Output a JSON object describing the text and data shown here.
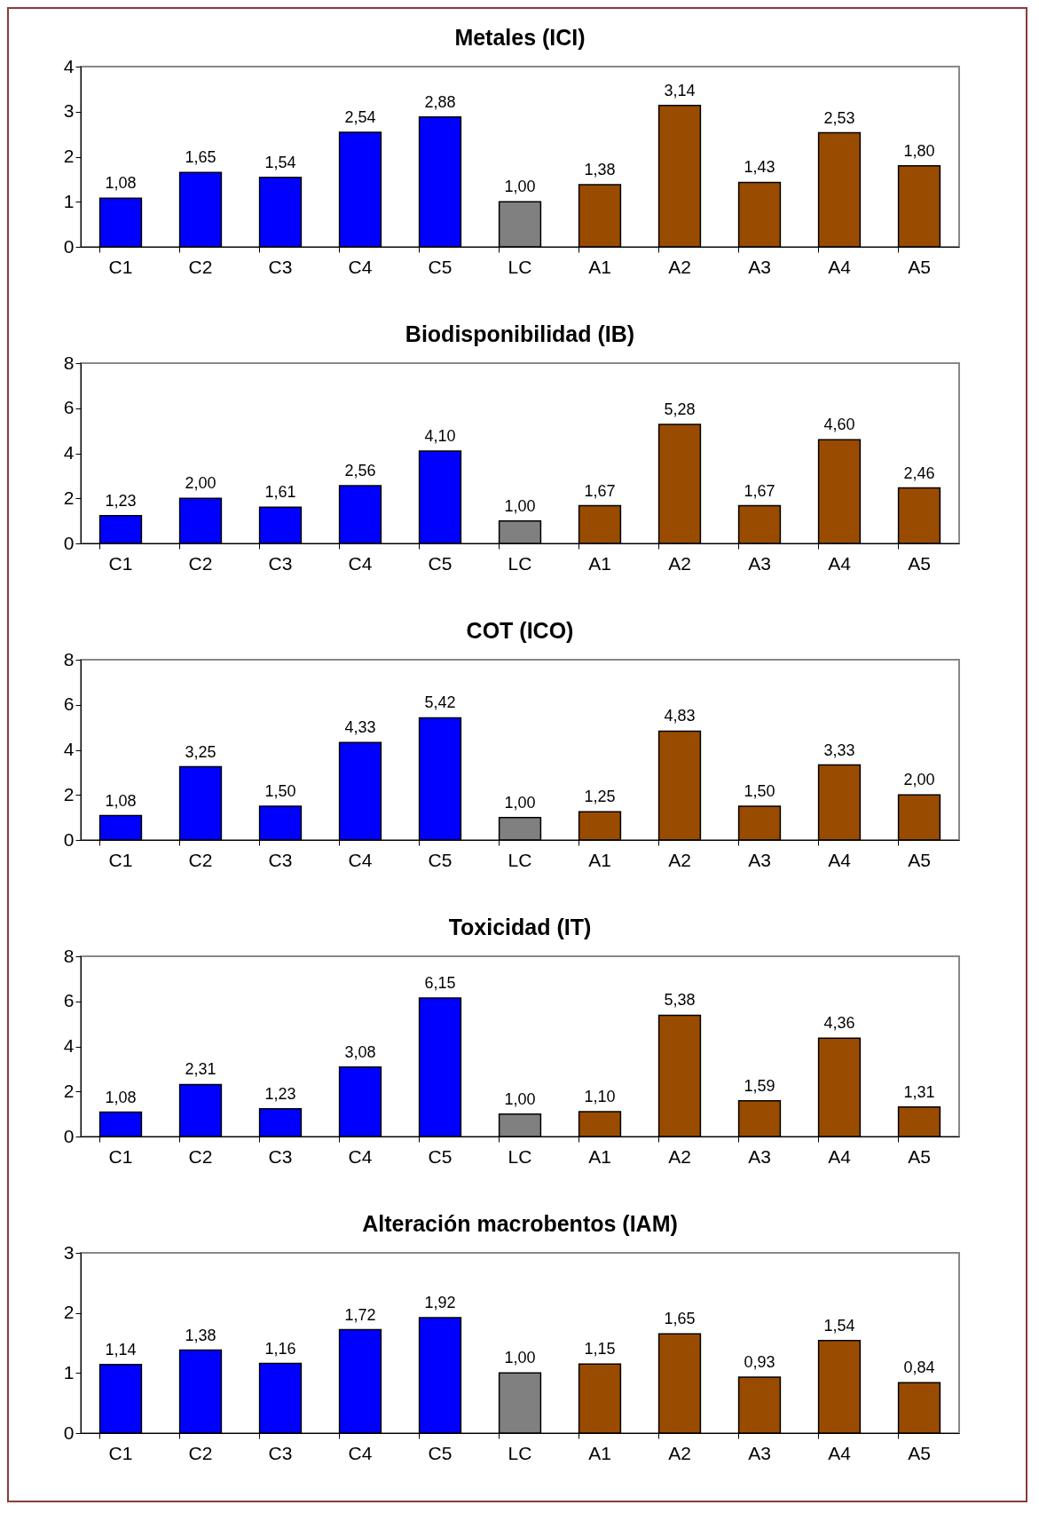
{
  "chart_data": [
    {
      "type": "bar",
      "title": "Metales (ICI)",
      "categories": [
        "C1",
        "C2",
        "C3",
        "C4",
        "C5",
        "LC",
        "A1",
        "A2",
        "A3",
        "A4",
        "A5"
      ],
      "values": [
        1.08,
        1.65,
        1.54,
        2.54,
        2.88,
        1.0,
        1.38,
        3.14,
        1.43,
        2.53,
        1.8
      ],
      "value_labels": [
        "1,08",
        "1,65",
        "1,54",
        "2,54",
        "2,88",
        "1,00",
        "1,38",
        "3,14",
        "1,43",
        "2,53",
        "1,80"
      ],
      "colors": [
        "#0000ff",
        "#0000ff",
        "#0000ff",
        "#0000ff",
        "#0000ff",
        "#808080",
        "#994c00",
        "#994c00",
        "#994c00",
        "#994c00",
        "#994c00"
      ],
      "ylim": [
        0,
        4
      ],
      "yticks": [
        0,
        1,
        2,
        3,
        4
      ]
    },
    {
      "type": "bar",
      "title": "Biodisponibilidad (IB)",
      "categories": [
        "C1",
        "C2",
        "C3",
        "C4",
        "C5",
        "LC",
        "A1",
        "A2",
        "A3",
        "A4",
        "A5"
      ],
      "values": [
        1.23,
        2.0,
        1.61,
        2.56,
        4.1,
        1.0,
        1.67,
        5.28,
        1.67,
        4.6,
        2.46
      ],
      "value_labels": [
        "1,23",
        "2,00",
        "1,61",
        "2,56",
        "4,10",
        "1,00",
        "1,67",
        "5,28",
        "1,67",
        "4,60",
        "2,46"
      ],
      "colors": [
        "#0000ff",
        "#0000ff",
        "#0000ff",
        "#0000ff",
        "#0000ff",
        "#808080",
        "#994c00",
        "#994c00",
        "#994c00",
        "#994c00",
        "#994c00"
      ],
      "ylim": [
        0,
        8
      ],
      "yticks": [
        0,
        2,
        4,
        6,
        8
      ]
    },
    {
      "type": "bar",
      "title": "COT (ICO)",
      "categories": [
        "C1",
        "C2",
        "C3",
        "C4",
        "C5",
        "LC",
        "A1",
        "A2",
        "A3",
        "A4",
        "A5"
      ],
      "values": [
        1.08,
        3.25,
        1.5,
        4.33,
        5.42,
        1.0,
        1.25,
        4.83,
        1.5,
        3.33,
        2.0
      ],
      "value_labels": [
        "1,08",
        "3,25",
        "1,50",
        "4,33",
        "5,42",
        "1,00",
        "1,25",
        "4,83",
        "1,50",
        "3,33",
        "2,00"
      ],
      "colors": [
        "#0000ff",
        "#0000ff",
        "#0000ff",
        "#0000ff",
        "#0000ff",
        "#808080",
        "#994c00",
        "#994c00",
        "#994c00",
        "#994c00",
        "#994c00"
      ],
      "ylim": [
        0,
        8
      ],
      "yticks": [
        0,
        2,
        4,
        6,
        8
      ]
    },
    {
      "type": "bar",
      "title": "Toxicidad (IT)",
      "categories": [
        "C1",
        "C2",
        "C3",
        "C4",
        "C5",
        "LC",
        "A1",
        "A2",
        "A3",
        "A4",
        "A5"
      ],
      "values": [
        1.08,
        2.31,
        1.23,
        3.08,
        6.15,
        1.0,
        1.1,
        5.38,
        1.59,
        4.36,
        1.31
      ],
      "value_labels": [
        "1,08",
        "2,31",
        "1,23",
        "3,08",
        "6,15",
        "1,00",
        "1,10",
        "5,38",
        "1,59",
        "4,36",
        "1,31"
      ],
      "colors": [
        "#0000ff",
        "#0000ff",
        "#0000ff",
        "#0000ff",
        "#0000ff",
        "#808080",
        "#994c00",
        "#994c00",
        "#994c00",
        "#994c00",
        "#994c00"
      ],
      "ylim": [
        0,
        8
      ],
      "yticks": [
        0,
        2,
        4,
        6,
        8
      ]
    },
    {
      "type": "bar",
      "title": "Alteración macrobentos (IAM)",
      "categories": [
        "C1",
        "C2",
        "C3",
        "C4",
        "C5",
        "LC",
        "A1",
        "A2",
        "A3",
        "A4",
        "A5"
      ],
      "values": [
        1.14,
        1.38,
        1.16,
        1.72,
        1.92,
        1.0,
        1.15,
        1.65,
        0.93,
        1.54,
        0.84
      ],
      "value_labels": [
        "1,14",
        "1,38",
        "1,16",
        "1,72",
        "1,92",
        "1,00",
        "1,15",
        "1,65",
        "0,93",
        "1,54",
        "0,84"
      ],
      "colors": [
        "#0000ff",
        "#0000ff",
        "#0000ff",
        "#0000ff",
        "#0000ff",
        "#808080",
        "#994c00",
        "#994c00",
        "#994c00",
        "#994c00",
        "#994c00"
      ],
      "ylim": [
        0,
        3
      ],
      "yticks": [
        0,
        1,
        2,
        3
      ]
    }
  ]
}
